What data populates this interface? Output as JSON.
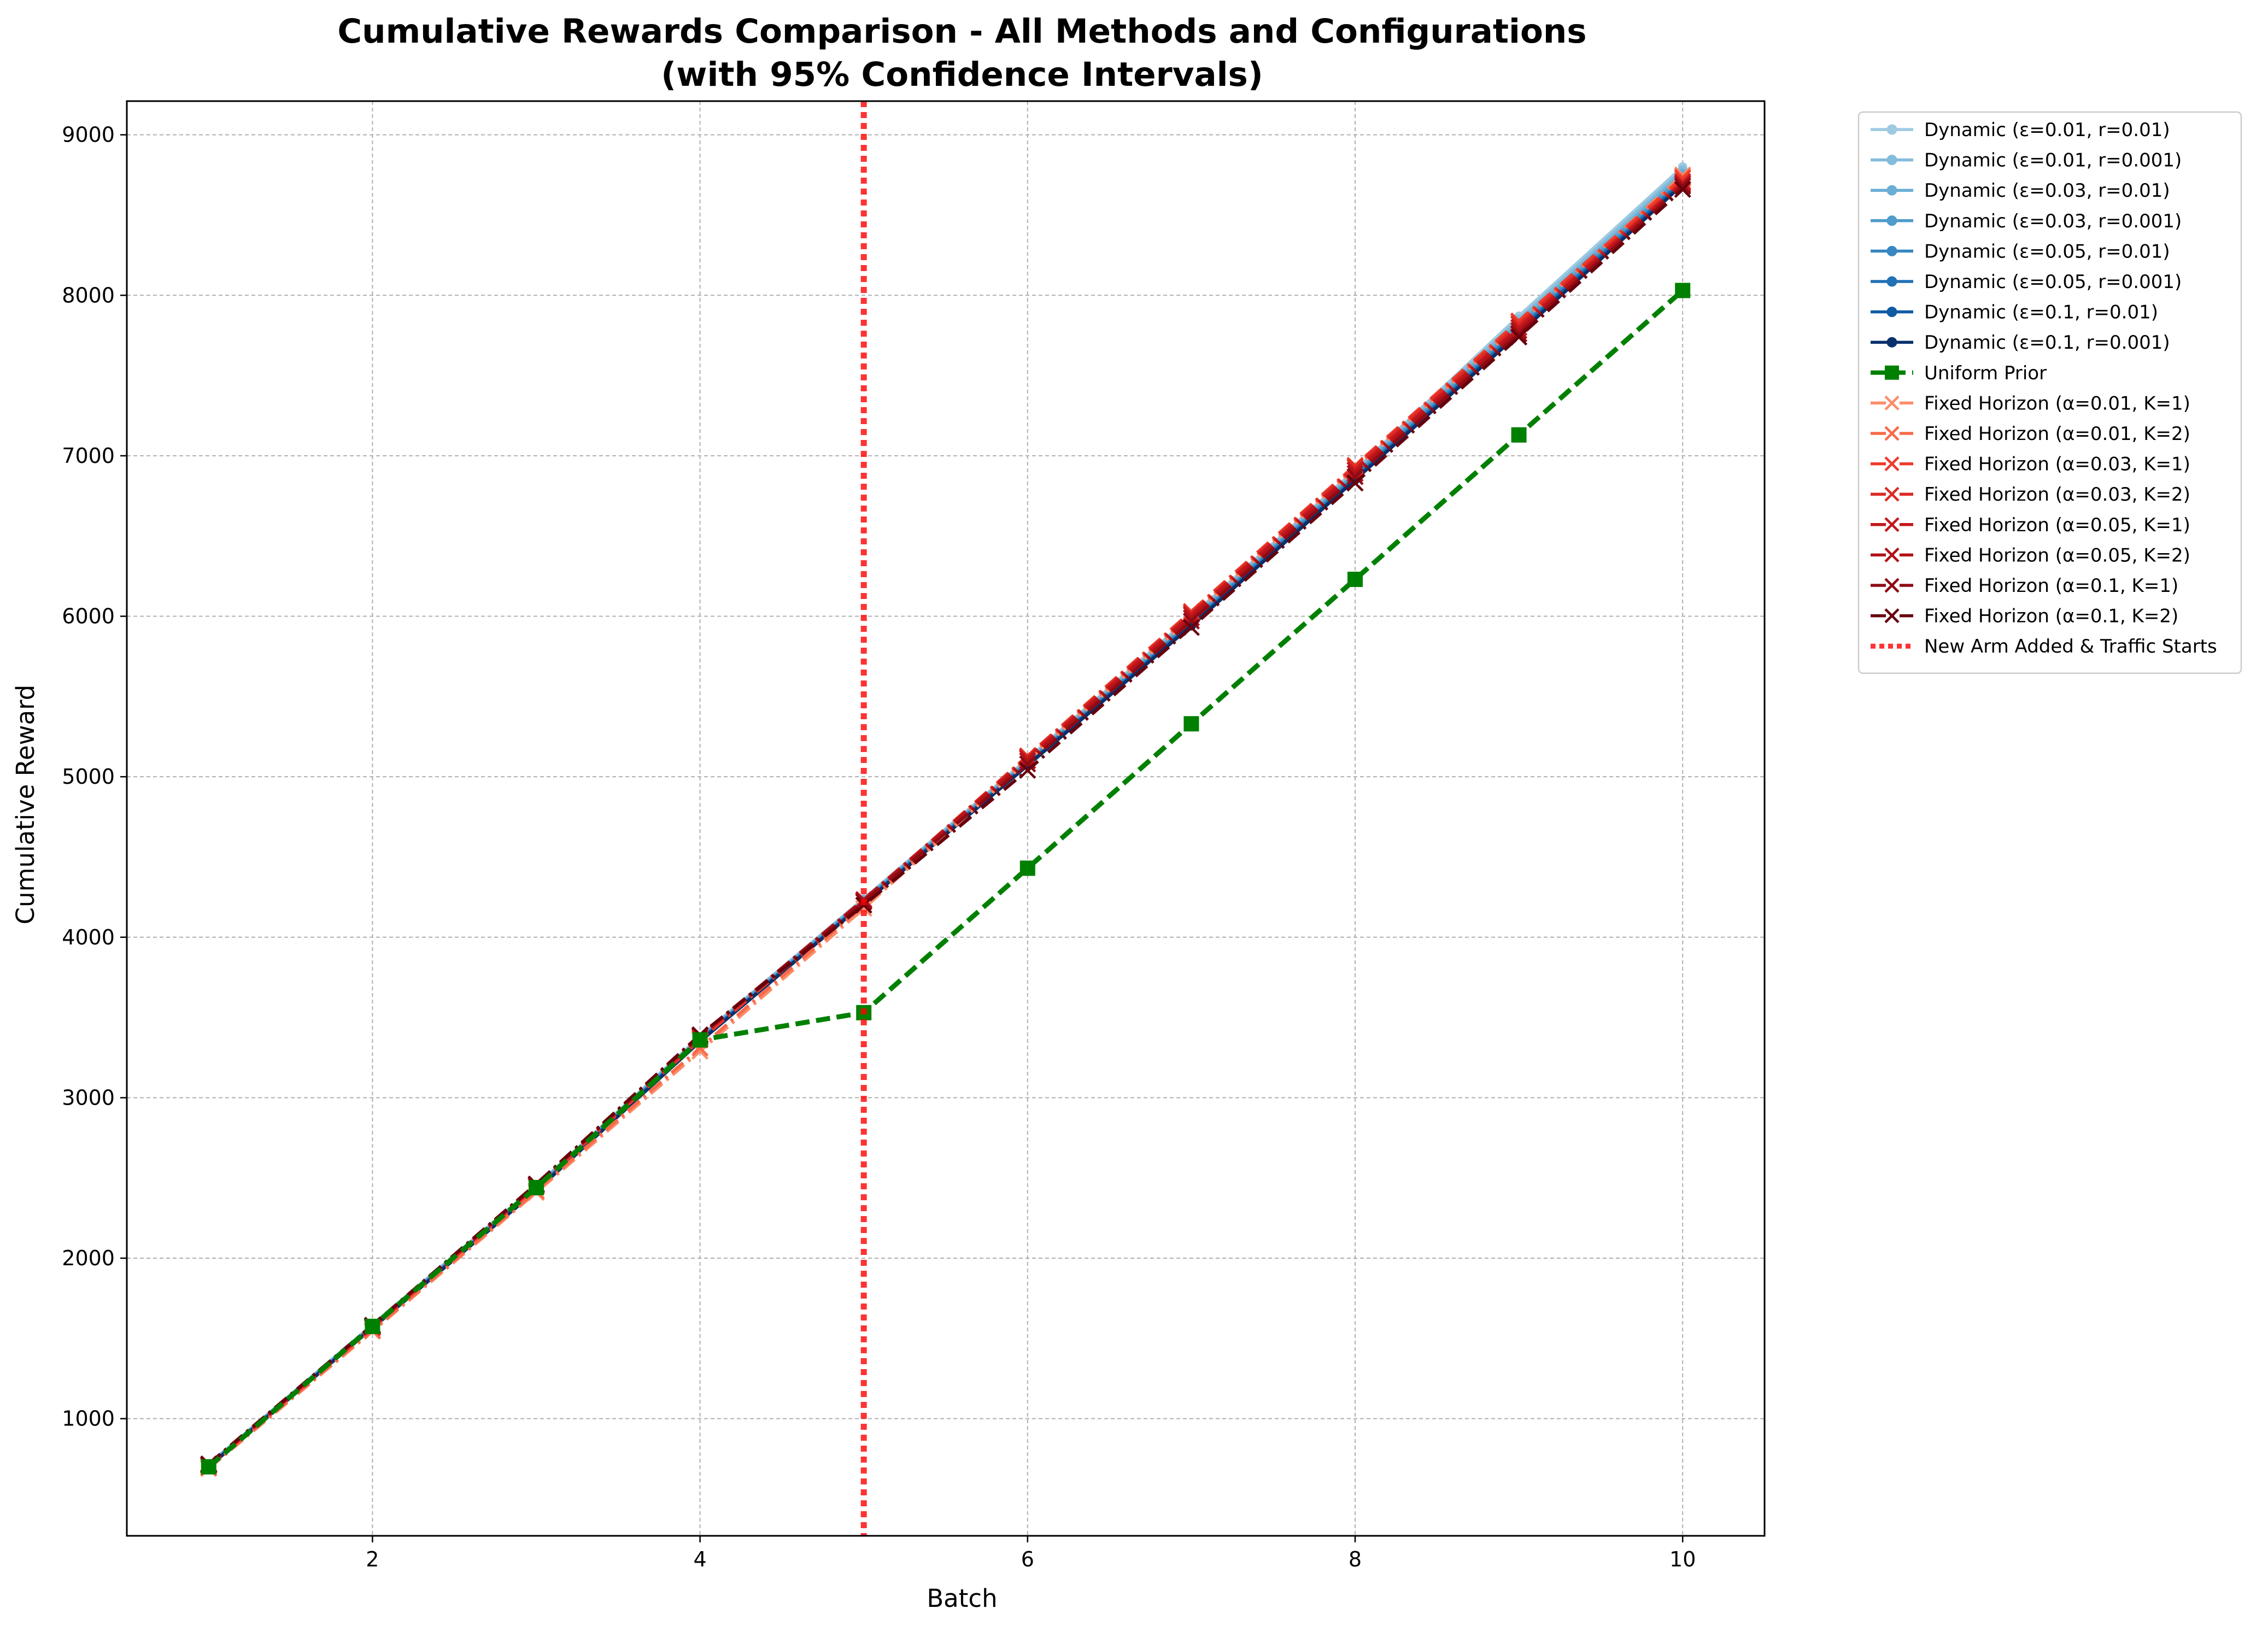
{
  "chart_data": {
    "type": "line",
    "title": "Cumulative Rewards Comparison - All Methods and Configurations",
    "subtitle": "(with 95% Confidence Intervals)",
    "xlabel": "Batch",
    "ylabel": "Cumulative Reward",
    "xlim": [
      0.5,
      10.5
    ],
    "ylim": [
      270,
      9210
    ],
    "x_ticks": [
      2,
      4,
      6,
      8,
      10
    ],
    "y_ticks": [
      1000,
      2000,
      3000,
      4000,
      5000,
      6000,
      7000,
      8000,
      9000
    ],
    "grid": true,
    "legend_position": "outside-right",
    "x": [
      1,
      2,
      3,
      4,
      5,
      6,
      7,
      8,
      9,
      10
    ],
    "series": [
      {
        "name": "Dynamic (ε=0.01, r=0.01)",
        "color": "#9ecae1",
        "style": "solid",
        "marker": "circle",
        "values": [
          715,
          1585,
          2450,
          3380,
          4240,
          5110,
          6000,
          6910,
          7870,
          8800
        ]
      },
      {
        "name": "Dynamic (ε=0.01, r=0.001)",
        "color": "#84bcdb",
        "style": "solid",
        "marker": "circle",
        "values": [
          712,
          1580,
          2445,
          3375,
          4235,
          5105,
          5990,
          6900,
          7850,
          8780
        ]
      },
      {
        "name": "Dynamic (ε=0.03, r=0.01)",
        "color": "#6aaed6",
        "style": "solid",
        "marker": "circle",
        "values": [
          710,
          1578,
          2440,
          3370,
          4230,
          5095,
          5980,
          6890,
          7830,
          8760
        ]
      },
      {
        "name": "Dynamic (ε=0.03, r=0.001)",
        "color": "#4f9bcb",
        "style": "solid",
        "marker": "circle",
        "values": [
          708,
          1575,
          2435,
          3365,
          4225,
          5090,
          5970,
          6880,
          7810,
          8740
        ]
      },
      {
        "name": "Dynamic (ε=0.05, r=0.01)",
        "color": "#3787c0",
        "style": "solid",
        "marker": "circle",
        "values": [
          706,
          1572,
          2430,
          3360,
          4220,
          5085,
          5960,
          6870,
          7790,
          8720
        ]
      },
      {
        "name": "Dynamic (ε=0.05, r=0.001)",
        "color": "#2171b5",
        "style": "solid",
        "marker": "circle",
        "values": [
          705,
          1570,
          2428,
          3358,
          4215,
          5080,
          5950,
          6860,
          7780,
          8710
        ]
      },
      {
        "name": "Dynamic (ε=0.1, r=0.01)",
        "color": "#105ba4",
        "style": "solid",
        "marker": "circle",
        "values": [
          703,
          1568,
          2425,
          3355,
          4212,
          5075,
          5945,
          6855,
          7770,
          8700
        ]
      },
      {
        "name": "Dynamic (ε=0.1, r=0.001)",
        "color": "#08306b",
        "style": "solid",
        "marker": "circle",
        "values": [
          700,
          1565,
          2420,
          3350,
          4210,
          5070,
          5940,
          6850,
          7760,
          8690
        ]
      },
      {
        "name": "Uniform Prior",
        "color": "#008000",
        "style": "dashed",
        "marker": "square",
        "values": [
          700,
          1575,
          2440,
          3360,
          3530,
          4430,
          5330,
          6230,
          7130,
          8030
        ]
      },
      {
        "name": "Fixed Horizon (α=0.01, K=1)",
        "color": "#fc8d6a",
        "style": "dashdot",
        "marker": "x",
        "values": [
          690,
          1545,
          2410,
          3290,
          4180,
          5100,
          5990,
          6920,
          7820,
          8750
        ]
      },
      {
        "name": "Fixed Horizon (α=0.01, K=2)",
        "color": "#f96a4a",
        "style": "dashdot",
        "marker": "x",
        "values": [
          695,
          1550,
          2420,
          3310,
          4200,
          5120,
          6010,
          6930,
          7830,
          8740
        ]
      },
      {
        "name": "Fixed Horizon (α=0.03, K=1)",
        "color": "#ef3b2c",
        "style": "dashdot",
        "marker": "x",
        "values": [
          705,
          1565,
          2445,
          3360,
          4225,
          5130,
          6030,
          6940,
          7840,
          8730
        ]
      },
      {
        "name": "Fixed Horizon (α=0.03, K=2)",
        "color": "#dc2a25",
        "style": "dashdot",
        "marker": "x",
        "values": [
          708,
          1570,
          2450,
          3370,
          4230,
          5125,
          6020,
          6930,
          7820,
          8710
        ]
      },
      {
        "name": "Fixed Horizon (α=0.05, K=1)",
        "color": "#c5171c",
        "style": "dashdot",
        "marker": "x",
        "values": [
          710,
          1575,
          2455,
          3380,
          4235,
          5115,
          6010,
          6910,
          7800,
          8700
        ]
      },
      {
        "name": "Fixed Horizon (α=0.05, K=2)",
        "color": "#b11218",
        "style": "dashdot",
        "marker": "x",
        "values": [
          712,
          1578,
          2458,
          3385,
          4230,
          5100,
          5990,
          6890,
          7780,
          8690
        ]
      },
      {
        "name": "Fixed Horizon (α=0.1, K=1)",
        "color": "#8e0b14",
        "style": "dashdot",
        "marker": "x",
        "values": [
          715,
          1580,
          2460,
          3390,
          4220,
          5080,
          5970,
          6870,
          7760,
          8680
        ]
      },
      {
        "name": "Fixed Horizon (α=0.1, K=2)",
        "color": "#67000d",
        "style": "dashdot",
        "marker": "x",
        "values": [
          718,
          1582,
          2462,
          3392,
          4200,
          5040,
          5930,
          6830,
          7740,
          8660
        ]
      }
    ],
    "vline": {
      "name": "New Arm Added & Traffic Starts",
      "x": 5,
      "color": "#ff0000",
      "style": "dotted"
    }
  }
}
